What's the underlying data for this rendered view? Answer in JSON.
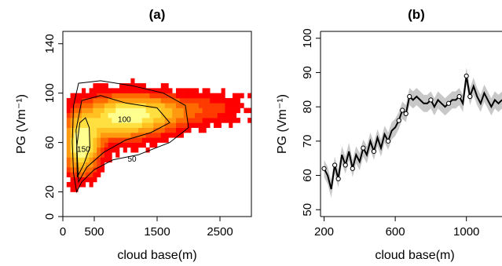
{
  "chart_data": [
    {
      "panel": "(a)",
      "type": "heatmap",
      "title": "(a)",
      "xlabel": "cloud base(m)",
      "ylabel": "PG (Vm⁻¹)",
      "xlim": [
        0,
        3000
      ],
      "ylim": [
        0,
        150
      ],
      "xticks": [
        0,
        500,
        1500,
        2500
      ],
      "yticks": [
        0,
        20,
        60,
        100,
        140
      ],
      "colors": {
        "low": "#ff0000",
        "mid": "#ff8c00",
        "high": "#ffff80"
      },
      "contour_levels": [
        {
          "label": "50",
          "x": 1100,
          "y": 47
        },
        {
          "label": "100",
          "x": 980,
          "y": 79
        },
        {
          "label": "150",
          "x": 330,
          "y": 55
        }
      ],
      "note": "2-D histogram density of potential gradient vs cloud base height"
    },
    {
      "panel": "(b)",
      "type": "line",
      "title": "(b)",
      "xlabel": "cloud base(m)",
      "ylabel": "PG (Vm⁻¹)",
      "xlim": [
        180,
        1200
      ],
      "ylim": [
        48,
        102
      ],
      "xticks": [
        200,
        600,
        1000
      ],
      "yticks": [
        50,
        60,
        70,
        80,
        90,
        100
      ],
      "series": [
        {
          "x": [
            200,
            220,
            240,
            260,
            280,
            300,
            320,
            340,
            360,
            380,
            400,
            420,
            440,
            460,
            480,
            500,
            520,
            540,
            560,
            580,
            600,
            620,
            640,
            660,
            680,
            700,
            720,
            740,
            760,
            780,
            800,
            820,
            840,
            860,
            880,
            900,
            920,
            940,
            960,
            980,
            1000,
            1020,
            1040,
            1060,
            1080,
            1100,
            1120,
            1140,
            1160,
            1180,
            1200
          ],
          "y": [
            62,
            60,
            56,
            63,
            59,
            66,
            63,
            67,
            62,
            66,
            64,
            68,
            66,
            70,
            67,
            71,
            68,
            72,
            70,
            73,
            74,
            76,
            79,
            78,
            83,
            82,
            83,
            82,
            81,
            81,
            82,
            80,
            82,
            81,
            80,
            81,
            82,
            82,
            83,
            81,
            89,
            83,
            86,
            83,
            81,
            84,
            82,
            80,
            82,
            81,
            82
          ],
          "marked_x": [
            200,
            260,
            280,
            320,
            360,
            420,
            480,
            560,
            620,
            640,
            660,
            680,
            800,
            900,
            960,
            1000,
            1020
          ]
        }
      ]
    }
  ]
}
